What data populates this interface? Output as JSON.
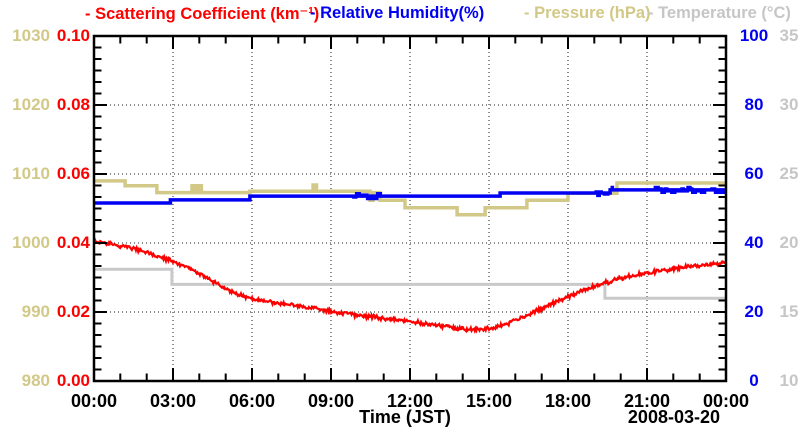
{
  "legend": {
    "items": [
      {
        "id": "scattering",
        "label": "- Scattering Coefficient (km⁻¹)",
        "color": "#ff0000"
      },
      {
        "id": "humidity",
        "label": "- Relative Humidity(%)",
        "color": "#0000f2"
      },
      {
        "id": "pressure",
        "label": "- Pressure (hPa)",
        "color": "#d2c887"
      },
      {
        "id": "temperature",
        "label": "- Temperature (°C)",
        "color": "#c6c6c6"
      }
    ]
  },
  "chart_data": {
    "type": "line",
    "title": "",
    "x_axis": {
      "label": "Time (JST)",
      "date": "2008-03-20",
      "range_hours": [
        0,
        24
      ],
      "major_tick_labels": [
        "00:00",
        "03:00",
        "06:00",
        "09:00",
        "12:00",
        "15:00",
        "18:00",
        "21:00",
        "00:00"
      ],
      "minor_tick_every_hours": 1,
      "grid": "dotted"
    },
    "y_axes": [
      {
        "id": "scattering",
        "side": "left-inner",
        "title": "Scattering Coefficient (km⁻¹)",
        "color": "#ff0000",
        "range": [
          0,
          0.1
        ],
        "tick_labels": [
          "0.00",
          "0.02",
          "0.04",
          "0.06",
          "0.08",
          "0.10"
        ]
      },
      {
        "id": "pressure",
        "side": "left-outer",
        "title": "Pressure (hPa)",
        "color": "#d2c887",
        "range": [
          980,
          1030
        ],
        "tick_labels": [
          "980",
          "990",
          "1000",
          "1010",
          "1020",
          "1030"
        ]
      },
      {
        "id": "humidity",
        "side": "right-inner",
        "title": "Relative Humidity (%)",
        "color": "#0000f2",
        "range": [
          0,
          100
        ],
        "tick_labels": [
          "0",
          "20",
          "40",
          "60",
          "80",
          "100"
        ]
      },
      {
        "id": "temperature",
        "side": "right-outer",
        "title": "Temperature (°C)",
        "color": "#c6c6c6",
        "range": [
          10,
          35
        ],
        "tick_labels": [
          "10",
          "15",
          "20",
          "25",
          "30",
          "35"
        ]
      }
    ],
    "series": [
      {
        "id": "scattering",
        "name": "Scattering Coefficient",
        "axis": "scattering",
        "color": "#ff0000",
        "style": "noisy-line",
        "noise": 0.0007,
        "points": [
          [
            0,
            0.0405
          ],
          [
            0.5,
            0.04
          ],
          [
            1,
            0.0392
          ],
          [
            1.5,
            0.0384
          ],
          [
            2,
            0.0372
          ],
          [
            2.5,
            0.0359
          ],
          [
            3,
            0.0346
          ],
          [
            3.5,
            0.033
          ],
          [
            4,
            0.0312
          ],
          [
            4.5,
            0.029
          ],
          [
            5,
            0.0268
          ],
          [
            5.5,
            0.025
          ],
          [
            6,
            0.0238
          ],
          [
            6.5,
            0.0231
          ],
          [
            7,
            0.0226
          ],
          [
            7.5,
            0.0221
          ],
          [
            8,
            0.0215
          ],
          [
            8.5,
            0.0209
          ],
          [
            9,
            0.0202
          ],
          [
            9.5,
            0.0196
          ],
          [
            10,
            0.0191
          ],
          [
            10.5,
            0.0186
          ],
          [
            11,
            0.0182
          ],
          [
            11.5,
            0.0178
          ],
          [
            12,
            0.0173
          ],
          [
            12.5,
            0.0167
          ],
          [
            13,
            0.0161
          ],
          [
            13.5,
            0.0156
          ],
          [
            14,
            0.0152
          ],
          [
            14.5,
            0.0149
          ],
          [
            15,
            0.0151
          ],
          [
            15.5,
            0.0161
          ],
          [
            16,
            0.0176
          ],
          [
            16.5,
            0.0193
          ],
          [
            17,
            0.021
          ],
          [
            17.5,
            0.0228
          ],
          [
            18,
            0.0245
          ],
          [
            18.5,
            0.0261
          ],
          [
            19,
            0.0274
          ],
          [
            19.5,
            0.0286
          ],
          [
            20,
            0.0297
          ],
          [
            20.5,
            0.0306
          ],
          [
            21,
            0.0312
          ],
          [
            21.5,
            0.0319
          ],
          [
            22,
            0.0325
          ],
          [
            22.5,
            0.033
          ],
          [
            23,
            0.0335
          ],
          [
            23.5,
            0.0339
          ],
          [
            24,
            0.0344
          ]
        ]
      },
      {
        "id": "humidity",
        "name": "Relative Humidity",
        "axis": "humidity",
        "color": "#0000f2",
        "style": "steps",
        "points": [
          [
            0,
            51.6
          ],
          [
            2.9,
            52.5
          ],
          [
            5.92,
            53.6
          ],
          [
            15.42,
            54.5
          ],
          [
            19.6,
            55.4
          ],
          [
            24,
            55.4
          ]
        ],
        "noisy_ranges": [
          [
            9.85,
            10.9
          ],
          [
            19.05,
            19.75
          ],
          [
            21.3,
            23.25
          ],
          [
            23.45,
            24
          ]
        ]
      },
      {
        "id": "pressure",
        "name": "Pressure",
        "axis": "pressure",
        "color": "#d2c887",
        "style": "steps",
        "points": [
          [
            0,
            1009.0
          ],
          [
            1.18,
            1008.3
          ],
          [
            2.39,
            1007.3
          ],
          [
            3.72,
            1008.3
          ],
          [
            3.82,
            1007.3
          ],
          [
            3.95,
            1008.3
          ],
          [
            4.08,
            1007.3
          ],
          [
            5.92,
            1007.5
          ],
          [
            8.32,
            1008.4
          ],
          [
            8.45,
            1007.5
          ],
          [
            10.48,
            1006.2
          ],
          [
            10.6,
            1007.3
          ],
          [
            10.86,
            1006.2
          ],
          [
            11.81,
            1005.1
          ],
          [
            13.79,
            1004.1
          ],
          [
            14.85,
            1005.1
          ],
          [
            16.44,
            1006.2
          ],
          [
            18.0,
            1007.2
          ],
          [
            19.86,
            1008.7
          ],
          [
            24,
            1008.7
          ]
        ]
      },
      {
        "id": "temperature",
        "name": "Temperature",
        "axis": "temperature",
        "color": "#c9c9c9",
        "style": "steps",
        "points": [
          [
            0,
            18.1
          ],
          [
            2.96,
            17.0
          ],
          [
            19.4,
            16.0
          ],
          [
            24,
            16.0
          ]
        ]
      }
    ]
  }
}
